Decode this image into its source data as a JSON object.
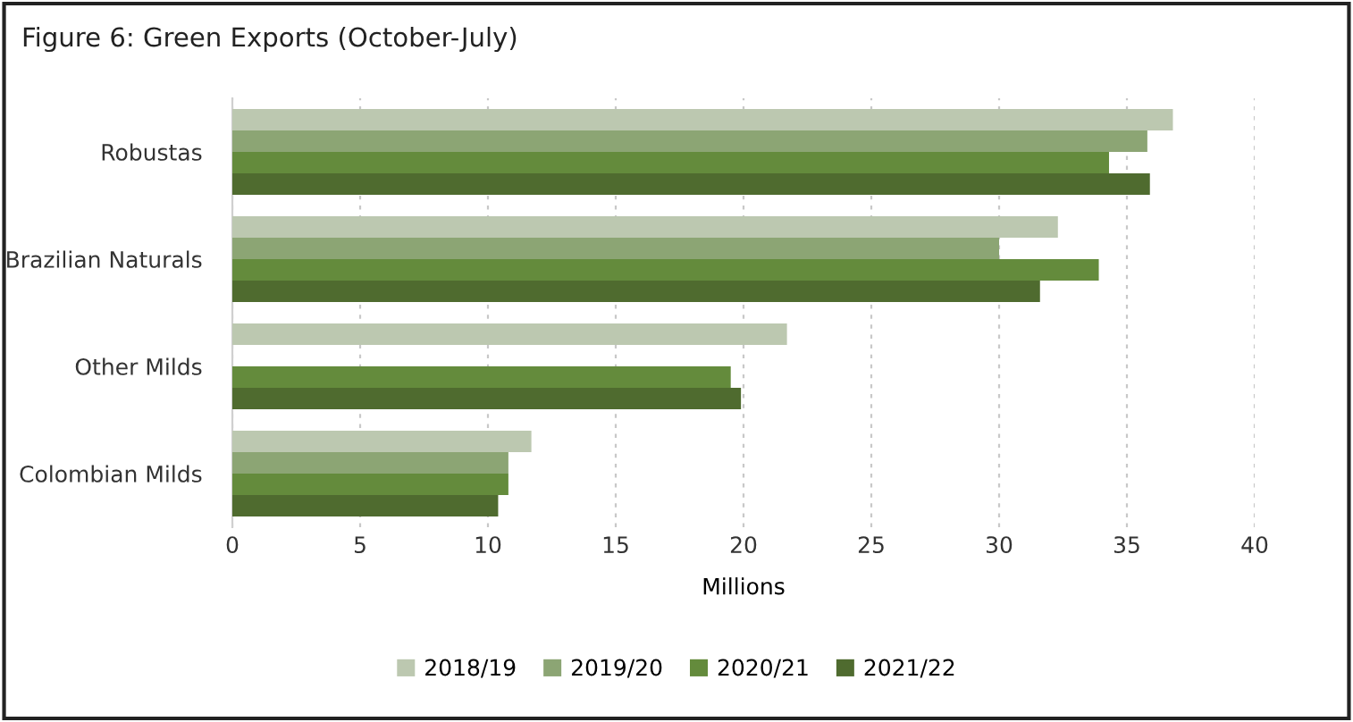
{
  "chart_data": {
    "type": "bar",
    "orientation": "horizontal",
    "title": "Figure 6: Green Exports (October-July)",
    "xlabel": "Millions",
    "categories": [
      "Robustas",
      "Brazilian Naturals",
      "Other Milds",
      "Colombian Milds"
    ],
    "series": [
      {
        "name": "2018/19",
        "color": "#bcc8b0",
        "values": [
          36.8,
          32.3,
          21.7,
          11.7
        ]
      },
      {
        "name": "2019/20",
        "color": "#8ca574",
        "values": [
          35.8,
          30.0,
          null,
          10.8
        ]
      },
      {
        "name": "2020/21",
        "color": "#648b3c",
        "values": [
          34.3,
          33.9,
          19.5,
          10.8
        ]
      },
      {
        "name": "2021/22",
        "color": "#4f6b2f",
        "values": [
          35.9,
          31.6,
          19.9,
          10.4
        ]
      }
    ],
    "xlim": [
      0,
      40
    ],
    "xticks": [
      0,
      5,
      10,
      15,
      20,
      25,
      30,
      35,
      40
    ],
    "grid": "x",
    "legend": "bottom"
  }
}
